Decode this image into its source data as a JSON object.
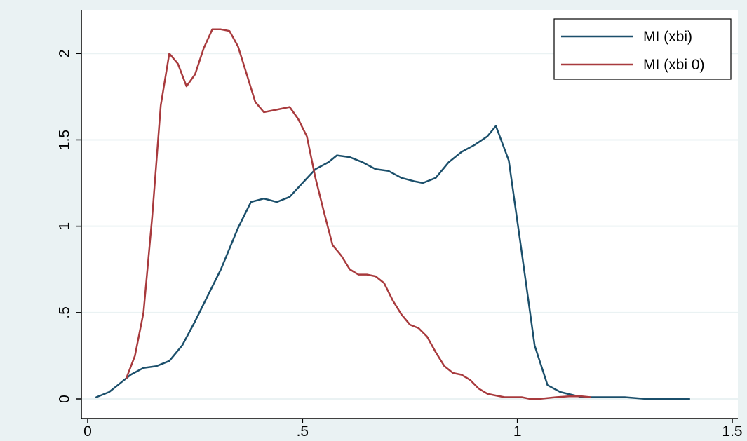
{
  "chart_data": {
    "type": "line",
    "title": "",
    "xlabel": "",
    "ylabel": "",
    "xlim": [
      0,
      1.5
    ],
    "ylim": [
      0,
      2.2
    ],
    "x_ticks": [
      0,
      0.5,
      1,
      1.5
    ],
    "x_tick_labels": [
      "0",
      ".5",
      "1",
      "1.5"
    ],
    "y_ticks": [
      0,
      0.5,
      1,
      1.5,
      2
    ],
    "y_tick_labels": [
      "0",
      ".5",
      "1",
      "1.5",
      "2"
    ],
    "y_tick_label_orientation": "vertical",
    "grid": "horizontal",
    "legend_position": "top-right",
    "colors": {
      "background": "#eaf2f3",
      "plot_area": "#ffffff",
      "gridline": "#eaf2f3",
      "axis": "#000000"
    },
    "series": [
      {
        "name": "MI (xbi)",
        "color": "#1b4f6b",
        "x": [
          0.02,
          0.05,
          0.07,
          0.1,
          0.13,
          0.16,
          0.19,
          0.22,
          0.25,
          0.28,
          0.31,
          0.35,
          0.38,
          0.41,
          0.44,
          0.47,
          0.5,
          0.53,
          0.56,
          0.58,
          0.61,
          0.64,
          0.67,
          0.7,
          0.73,
          0.76,
          0.78,
          0.81,
          0.84,
          0.87,
          0.9,
          0.93,
          0.95,
          0.98,
          1.01,
          1.04,
          1.07,
          1.1,
          1.15,
          1.25,
          1.3,
          1.4
        ],
        "y": [
          0.01,
          0.04,
          0.08,
          0.14,
          0.18,
          0.19,
          0.22,
          0.31,
          0.45,
          0.6,
          0.75,
          0.99,
          1.14,
          1.16,
          1.14,
          1.17,
          1.25,
          1.33,
          1.37,
          1.41,
          1.4,
          1.37,
          1.33,
          1.32,
          1.28,
          1.26,
          1.25,
          1.28,
          1.37,
          1.43,
          1.47,
          1.52,
          1.58,
          1.38,
          0.85,
          0.31,
          0.08,
          0.04,
          0.01,
          0.01,
          0.0,
          0.0
        ]
      },
      {
        "name": "MI (xbi 0)",
        "color": "#a83a3d",
        "x": [
          0.09,
          0.11,
          0.13,
          0.15,
          0.17,
          0.19,
          0.21,
          0.23,
          0.25,
          0.27,
          0.29,
          0.31,
          0.33,
          0.35,
          0.37,
          0.39,
          0.41,
          0.43,
          0.45,
          0.47,
          0.49,
          0.51,
          0.53,
          0.55,
          0.57,
          0.59,
          0.61,
          0.63,
          0.65,
          0.67,
          0.69,
          0.71,
          0.73,
          0.75,
          0.77,
          0.79,
          0.81,
          0.83,
          0.85,
          0.87,
          0.89,
          0.91,
          0.93,
          0.95,
          0.97,
          0.99,
          1.01,
          1.03,
          1.05,
          1.07,
          1.09,
          1.12,
          1.15,
          1.17
        ],
        "y": [
          0.12,
          0.25,
          0.5,
          1.05,
          1.7,
          2.0,
          1.94,
          1.81,
          1.88,
          2.03,
          2.14,
          2.14,
          2.13,
          2.04,
          1.88,
          1.72,
          1.66,
          1.67,
          1.68,
          1.69,
          1.62,
          1.52,
          1.28,
          1.08,
          0.89,
          0.83,
          0.75,
          0.72,
          0.72,
          0.71,
          0.67,
          0.57,
          0.49,
          0.43,
          0.41,
          0.36,
          0.27,
          0.19,
          0.15,
          0.14,
          0.11,
          0.06,
          0.03,
          0.02,
          0.01,
          0.01,
          0.01,
          0.0,
          0.0,
          0.005,
          0.01,
          0.015,
          0.015,
          0.01
        ]
      }
    ]
  }
}
